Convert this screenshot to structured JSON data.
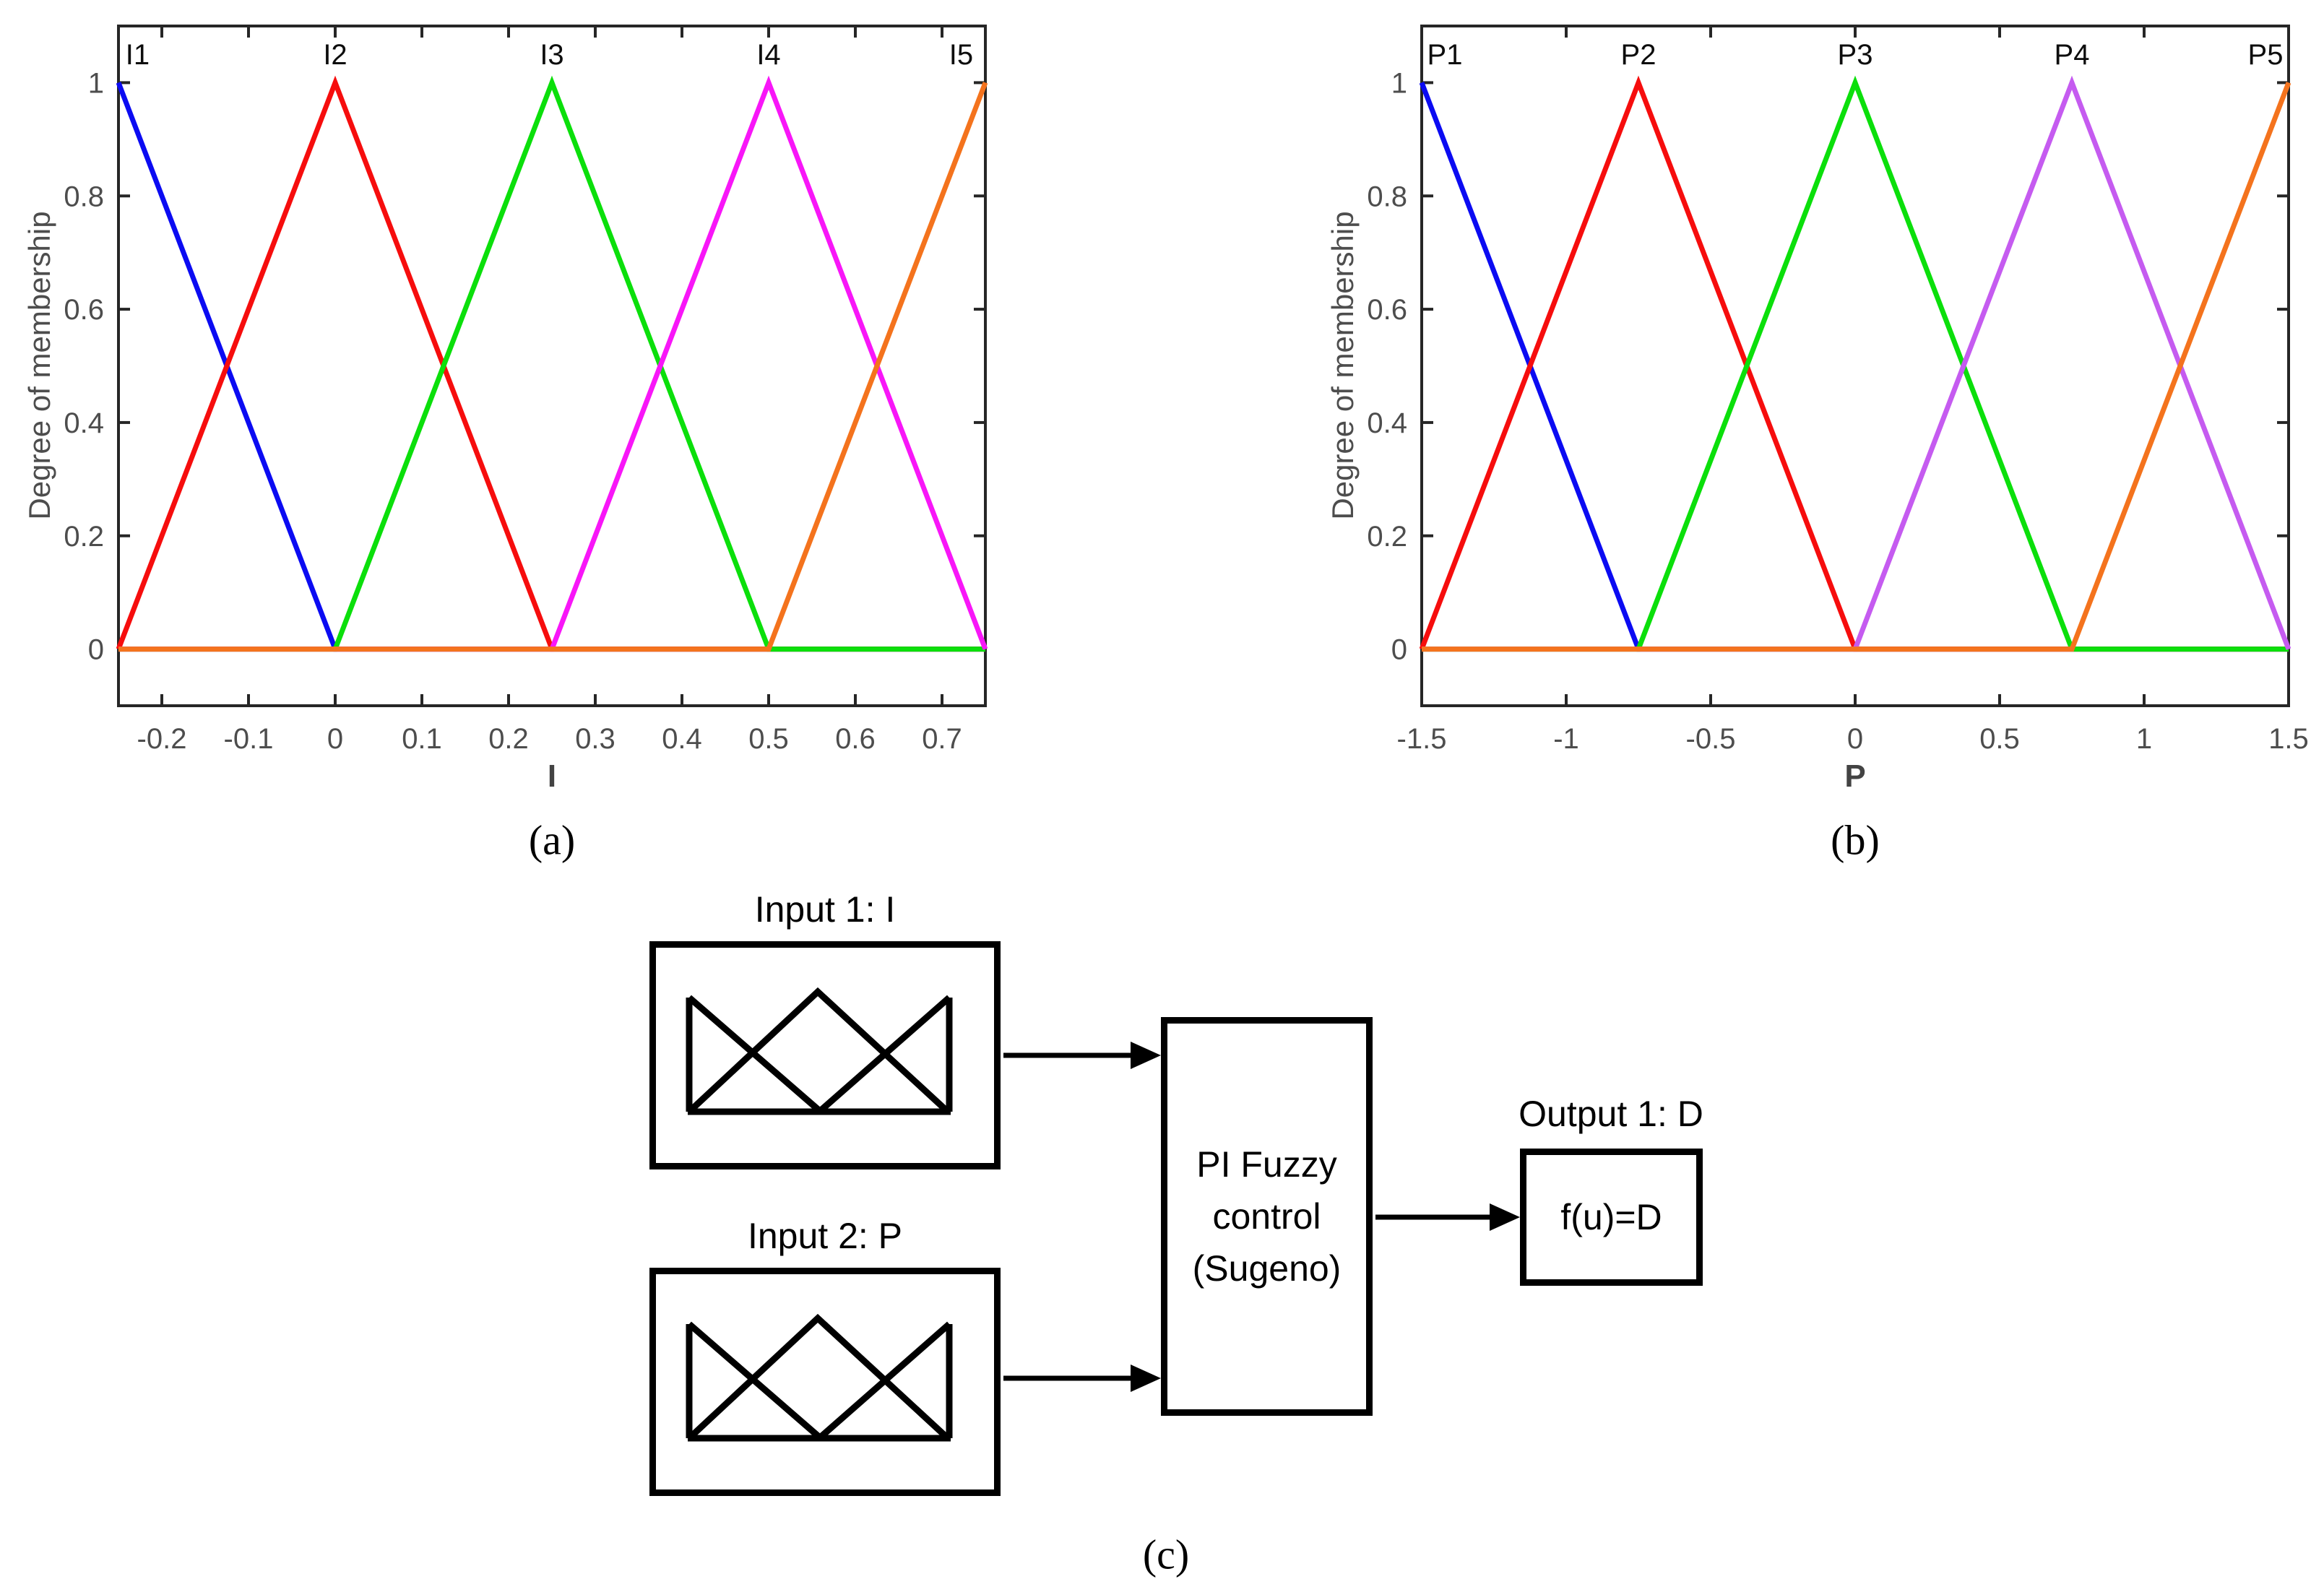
{
  "chart_data": [
    {
      "id": "a",
      "type": "line",
      "caption": "(a)",
      "xlabel": "I",
      "ylabel": "Degree of membership",
      "xlim": [
        -0.25,
        0.75
      ],
      "ylim": [
        -0.1,
        1.1
      ],
      "grid": false,
      "legend": "none",
      "xticks": [
        {
          "v": -0.2,
          "label": "-0.2"
        },
        {
          "v": -0.1,
          "label": "-0.1"
        },
        {
          "v": 0,
          "label": "0"
        },
        {
          "v": 0.1,
          "label": "0.1"
        },
        {
          "v": 0.2,
          "label": "0.2"
        },
        {
          "v": 0.3,
          "label": "0.3"
        },
        {
          "v": 0.4,
          "label": "0.4"
        },
        {
          "v": 0.5,
          "label": "0.5"
        },
        {
          "v": 0.6,
          "label": "0.6"
        },
        {
          "v": 0.7,
          "label": "0.7"
        }
      ],
      "yticks": [
        {
          "v": 0,
          "label": "0"
        },
        {
          "v": 0.2,
          "label": "0.2"
        },
        {
          "v": 0.4,
          "label": "0.4"
        },
        {
          "v": 0.6,
          "label": "0.6"
        },
        {
          "v": 0.8,
          "label": "0.8"
        },
        {
          "v": 1,
          "label": "1"
        }
      ],
      "mf_labels": [
        {
          "text": "I1",
          "x": -0.228
        },
        {
          "text": "I2",
          "x": 0
        },
        {
          "text": "I3",
          "x": 0.25
        },
        {
          "text": "I4",
          "x": 0.5
        },
        {
          "text": "I5",
          "x": 0.722
        }
      ],
      "series": [
        {
          "name": "I1",
          "color": "#0b0bf2",
          "points": [
            [
              -0.25,
              1
            ],
            [
              0,
              0
            ],
            [
              0.75,
              0
            ]
          ]
        },
        {
          "name": "I2",
          "color": "#f60d0d",
          "points": [
            [
              -0.25,
              0
            ],
            [
              0,
              1
            ],
            [
              0.25,
              0
            ],
            [
              0.75,
              0
            ]
          ]
        },
        {
          "name": "I3",
          "color": "#0bdf0b",
          "points": [
            [
              -0.25,
              0
            ],
            [
              0,
              0
            ],
            [
              0.25,
              1
            ],
            [
              0.5,
              0
            ],
            [
              0.75,
              0
            ]
          ]
        },
        {
          "name": "I4",
          "color": "#f816f8",
          "points": [
            [
              -0.25,
              0
            ],
            [
              0.25,
              0
            ],
            [
              0.5,
              1
            ],
            [
              0.75,
              0
            ]
          ]
        },
        {
          "name": "I5",
          "color": "#f4731d",
          "points": [
            [
              -0.25,
              0
            ],
            [
              0.5,
              0
            ],
            [
              0.75,
              1
            ]
          ]
        }
      ]
    },
    {
      "id": "b",
      "type": "line",
      "caption": "(b)",
      "xlabel": "P",
      "ylabel": "Degree of membership",
      "xlim": [
        -1.5,
        1.5
      ],
      "ylim": [
        -0.1,
        1.1
      ],
      "grid": false,
      "legend": "none",
      "xticks": [
        {
          "v": -1.5,
          "label": "-1.5"
        },
        {
          "v": -1,
          "label": "-1"
        },
        {
          "v": -0.5,
          "label": "-0.5"
        },
        {
          "v": 0,
          "label": "0"
        },
        {
          "v": 0.5,
          "label": "0.5"
        },
        {
          "v": 1,
          "label": "1"
        },
        {
          "v": 1.5,
          "label": "1.5"
        }
      ],
      "yticks": [
        {
          "v": 0,
          "label": "0"
        },
        {
          "v": 0.2,
          "label": "0.2"
        },
        {
          "v": 0.4,
          "label": "0.4"
        },
        {
          "v": 0.6,
          "label": "0.6"
        },
        {
          "v": 0.8,
          "label": "0.8"
        },
        {
          "v": 1,
          "label": "1"
        }
      ],
      "mf_labels": [
        {
          "text": "P1",
          "x": -1.42
        },
        {
          "text": "P2",
          "x": -0.75
        },
        {
          "text": "P3",
          "x": 0
        },
        {
          "text": "P4",
          "x": 0.75
        },
        {
          "text": "P5",
          "x": 1.42
        }
      ],
      "series": [
        {
          "name": "P1",
          "color": "#0b0bf2",
          "points": [
            [
              -1.5,
              1
            ],
            [
              -0.75,
              0
            ],
            [
              1.5,
              0
            ]
          ]
        },
        {
          "name": "P2",
          "color": "#f60d0d",
          "points": [
            [
              -1.5,
              0
            ],
            [
              -0.75,
              1
            ],
            [
              0,
              0
            ],
            [
              1.5,
              0
            ]
          ]
        },
        {
          "name": "P3",
          "color": "#0bdf0b",
          "points": [
            [
              -1.5,
              0
            ],
            [
              -0.75,
              0
            ],
            [
              0,
              1
            ],
            [
              0.75,
              0
            ],
            [
              1.5,
              0
            ]
          ]
        },
        {
          "name": "P4",
          "color": "#c55bf0",
          "points": [
            [
              -1.5,
              0
            ],
            [
              0,
              0
            ],
            [
              0.75,
              1
            ],
            [
              1.5,
              0
            ]
          ]
        },
        {
          "name": "P5",
          "color": "#f4731d",
          "points": [
            [
              -1.5,
              0
            ],
            [
              0.75,
              0
            ],
            [
              1.5,
              1
            ]
          ]
        }
      ]
    }
  ],
  "diagram": {
    "caption": "(c)",
    "input1_label": "Input 1: I",
    "input2_label": "Input 2: P",
    "controller_lines": [
      "PI Fuzzy",
      "control",
      "(Sugeno)"
    ],
    "output_label": "Output 1: D",
    "output_box_text": "f(u)=D"
  },
  "styles": {
    "axis_color": "#262626",
    "tick_label_color": "#4d4d4d",
    "mf_label_color": "#0d0d0d",
    "diagram_line_color": "#000000",
    "background": "#ffffff"
  }
}
